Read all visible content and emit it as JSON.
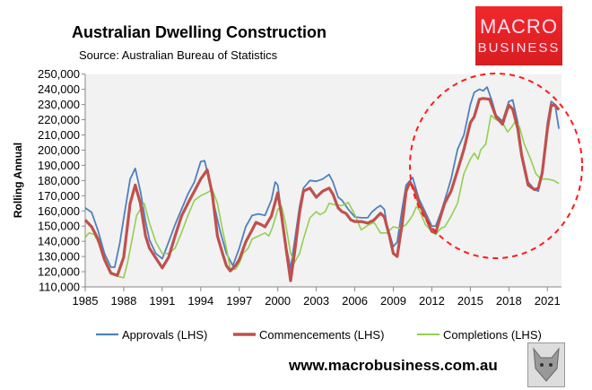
{
  "header": {
    "title": "Australian Dwelling Construction",
    "source": "Source: Australian Bureau of Statistics"
  },
  "logo": {
    "line1": "MACRO",
    "line2": "BUSINESS"
  },
  "footer": {
    "website": "www.macrobusiness.com.au",
    "fox_icon": "fox-head-icon"
  },
  "chart_data": {
    "type": "line",
    "title": "Australian Dwelling Construction",
    "ylabel": "Rolling Annual",
    "xlabel": "",
    "ylim": [
      110000,
      250000
    ],
    "xlim": [
      1985,
      2022.1
    ],
    "yticks": [
      110000,
      120000,
      130000,
      140000,
      150000,
      160000,
      170000,
      180000,
      190000,
      200000,
      210000,
      220000,
      230000,
      240000,
      250000
    ],
    "ytick_labels": [
      "110,000",
      "120,000",
      "130,000",
      "140,000",
      "150,000",
      "160,000",
      "170,000",
      "180,000",
      "190,000",
      "200,000",
      "210,000",
      "220,000",
      "230,000",
      "240,000",
      "250,000"
    ],
    "xtick_labels": [
      "1985",
      "1988",
      "1991",
      "1994",
      "1997",
      "2000",
      "2003",
      "2006",
      "2009",
      "2012",
      "2015",
      "2018",
      "2021"
    ],
    "grid": false,
    "legend": "bottom",
    "annotation": "red dashed circle highlighting 2012-2021",
    "series": [
      {
        "name": "Approvals (LHS)",
        "color": "#4f81bd",
        "points": [
          [
            1985,
            162000
          ],
          [
            1985.5,
            159000
          ],
          [
            1986,
            147000
          ],
          [
            1986.5,
            132000
          ],
          [
            1987,
            123000
          ],
          [
            1987.3,
            123000
          ],
          [
            1987.7,
            139000
          ],
          [
            1988,
            155000
          ],
          [
            1988.5,
            181000
          ],
          [
            1988.9,
            188000
          ],
          [
            1989.3,
            173000
          ],
          [
            1989.7,
            153000
          ],
          [
            1990,
            141000
          ],
          [
            1990.5,
            132000
          ],
          [
            1991,
            128500
          ],
          [
            1991.5,
            139500
          ],
          [
            1992,
            151000
          ],
          [
            1992.5,
            161000
          ],
          [
            1993,
            171000
          ],
          [
            1993.5,
            179000
          ],
          [
            1994,
            192500
          ],
          [
            1994.3,
            193000
          ],
          [
            1994.7,
            179000
          ],
          [
            1995,
            165500
          ],
          [
            1995.5,
            147000
          ],
          [
            1996,
            132000
          ],
          [
            1996.5,
            124000
          ],
          [
            1997,
            135500
          ],
          [
            1997.5,
            149500
          ],
          [
            1998,
            157000
          ],
          [
            1998.5,
            158000
          ],
          [
            1999,
            157000
          ],
          [
            1999.5,
            167000
          ],
          [
            1999.8,
            179000
          ],
          [
            2000,
            177000
          ],
          [
            2000.5,
            143500
          ],
          [
            2001,
            122000
          ],
          [
            2001.3,
            139500
          ],
          [
            2001.7,
            163000
          ],
          [
            2002,
            175000
          ],
          [
            2002.5,
            180000
          ],
          [
            2003,
            179500
          ],
          [
            2003.5,
            181000
          ],
          [
            2004,
            184000
          ],
          [
            2004.3,
            179000
          ],
          [
            2004.7,
            169000
          ],
          [
            2005,
            167000
          ],
          [
            2005.5,
            161000
          ],
          [
            2006,
            156000
          ],
          [
            2006.5,
            155500
          ],
          [
            2007,
            155500
          ],
          [
            2007.3,
            159000
          ],
          [
            2007.7,
            162000
          ],
          [
            2008,
            163500
          ],
          [
            2008.3,
            161000
          ],
          [
            2008.5,
            151000
          ],
          [
            2009,
            136500
          ],
          [
            2009.3,
            139500
          ],
          [
            2009.7,
            162000
          ],
          [
            2010,
            177000
          ],
          [
            2010.5,
            182000
          ],
          [
            2011,
            168000
          ],
          [
            2011.5,
            159000
          ],
          [
            2012,
            150000
          ],
          [
            2012.3,
            150000
          ],
          [
            2012.7,
            159000
          ],
          [
            2013,
            167000
          ],
          [
            2013.5,
            181000
          ],
          [
            2014,
            200500
          ],
          [
            2014.5,
            210000
          ],
          [
            2015,
            230000
          ],
          [
            2015.3,
            238000
          ],
          [
            2015.7,
            240000
          ],
          [
            2016,
            239000
          ],
          [
            2016.3,
            241500
          ],
          [
            2016.7,
            232000
          ],
          [
            2017,
            223000
          ],
          [
            2017.5,
            219000
          ],
          [
            2018,
            232000
          ],
          [
            2018.3,
            233000
          ],
          [
            2018.7,
            218000
          ],
          [
            2019,
            198500
          ],
          [
            2019.5,
            179000
          ],
          [
            2020,
            174000
          ],
          [
            2020.3,
            173000
          ],
          [
            2020.6,
            186500
          ],
          [
            2021,
            218000
          ],
          [
            2021.3,
            232000
          ],
          [
            2021.6,
            230000
          ],
          [
            2021.9,
            214000
          ]
        ]
      },
      {
        "name": "Commencements (LHS)",
        "color": "#c0504d",
        "points": [
          [
            1985,
            154000
          ],
          [
            1985.5,
            149500
          ],
          [
            1986,
            141500
          ],
          [
            1986.5,
            128000
          ],
          [
            1987,
            119000
          ],
          [
            1987.5,
            117500
          ],
          [
            1988,
            129500
          ],
          [
            1988.5,
            165000
          ],
          [
            1988.9,
            177000
          ],
          [
            1989.3,
            165000
          ],
          [
            1989.7,
            143500
          ],
          [
            1990,
            135500
          ],
          [
            1990.5,
            129000
          ],
          [
            1991,
            122500
          ],
          [
            1991.5,
            129500
          ],
          [
            1992,
            143500
          ],
          [
            1992.5,
            156500
          ],
          [
            1993,
            165000
          ],
          [
            1993.5,
            173000
          ],
          [
            1994,
            181000
          ],
          [
            1994.5,
            187000
          ],
          [
            1994.9,
            171000
          ],
          [
            1995.3,
            143500
          ],
          [
            1995.7,
            132000
          ],
          [
            1996,
            124000
          ],
          [
            1996.3,
            120500
          ],
          [
            1996.7,
            124000
          ],
          [
            1997,
            128000
          ],
          [
            1997.5,
            139500
          ],
          [
            1998,
            147500
          ],
          [
            1998.3,
            152500
          ],
          [
            1998.7,
            151000
          ],
          [
            1999,
            149500
          ],
          [
            1999.5,
            156500
          ],
          [
            2000,
            172000
          ],
          [
            2000.3,
            156500
          ],
          [
            2000.7,
            132000
          ],
          [
            2001,
            114000
          ],
          [
            2001.3,
            132000
          ],
          [
            2001.7,
            159000
          ],
          [
            2002,
            173000
          ],
          [
            2002.5,
            175000
          ],
          [
            2003,
            169000
          ],
          [
            2003.5,
            173000
          ],
          [
            2004,
            175000
          ],
          [
            2004.3,
            171000
          ],
          [
            2004.7,
            162000
          ],
          [
            2005,
            159500
          ],
          [
            2005.3,
            158500
          ],
          [
            2005.7,
            154000
          ],
          [
            2006,
            153000
          ],
          [
            2006.5,
            153000
          ],
          [
            2007,
            152000
          ],
          [
            2007.5,
            154000
          ],
          [
            2008,
            158500
          ],
          [
            2008.3,
            156000
          ],
          [
            2008.7,
            143500
          ],
          [
            2009,
            132000
          ],
          [
            2009.3,
            130000
          ],
          [
            2009.7,
            152000
          ],
          [
            2010,
            173000
          ],
          [
            2010.3,
            179000
          ],
          [
            2010.7,
            173000
          ],
          [
            2011,
            165000
          ],
          [
            2011.5,
            156500
          ],
          [
            2012,
            146500
          ],
          [
            2012.3,
            145500
          ],
          [
            2012.7,
            157000
          ],
          [
            2013,
            165000
          ],
          [
            2013.5,
            173000
          ],
          [
            2014,
            186500
          ],
          [
            2014.5,
            200500
          ],
          [
            2015,
            218000
          ],
          [
            2015.3,
            222000
          ],
          [
            2015.7,
            233500
          ],
          [
            2016,
            234000
          ],
          [
            2016.5,
            233500
          ],
          [
            2017,
            222000
          ],
          [
            2017.5,
            217000
          ],
          [
            2017.8,
            225000
          ],
          [
            2018,
            229500
          ],
          [
            2018.3,
            227000
          ],
          [
            2018.7,
            214000
          ],
          [
            2019,
            196500
          ],
          [
            2019.5,
            177000
          ],
          [
            2020,
            174000
          ],
          [
            2020.3,
            175000
          ],
          [
            2020.6,
            185000
          ],
          [
            2021,
            214000
          ],
          [
            2021.3,
            229500
          ],
          [
            2021.6,
            229500
          ],
          [
            2021.9,
            226500
          ]
        ]
      },
      {
        "name": "Completions (LHS)",
        "color": "#92d050",
        "points": [
          [
            1985,
            142500
          ],
          [
            1985.3,
            145500
          ],
          [
            1985.7,
            144500
          ],
          [
            1986,
            139500
          ],
          [
            1986.5,
            129500
          ],
          [
            1987,
            120000
          ],
          [
            1987.5,
            117000
          ],
          [
            1988,
            116000
          ],
          [
            1988.3,
            126000
          ],
          [
            1988.7,
            143500
          ],
          [
            1989,
            157000
          ],
          [
            1989.3,
            161000
          ],
          [
            1989.6,
            165000
          ],
          [
            1990,
            152000
          ],
          [
            1990.5,
            139500
          ],
          [
            1991,
            132000
          ],
          [
            1991.5,
            132000
          ],
          [
            1992,
            135500
          ],
          [
            1992.5,
            145500
          ],
          [
            1993,
            157000
          ],
          [
            1993.5,
            167000
          ],
          [
            1994,
            170000
          ],
          [
            1994.5,
            172000
          ],
          [
            1994.9,
            174000
          ],
          [
            1995.3,
            165000
          ],
          [
            1995.7,
            147500
          ],
          [
            1996,
            135500
          ],
          [
            1996.3,
            122000
          ],
          [
            1996.7,
            121500
          ],
          [
            1997,
            125500
          ],
          [
            1997.3,
            132000
          ],
          [
            1997.7,
            135500
          ],
          [
            1998,
            141500
          ],
          [
            1998.5,
            143500
          ],
          [
            1999,
            145500
          ],
          [
            1999.3,
            143500
          ],
          [
            1999.6,
            149500
          ],
          [
            2000,
            161000
          ],
          [
            2000.3,
            163000
          ],
          [
            2000.6,
            152000
          ],
          [
            2001,
            132000
          ],
          [
            2001.3,
            126000
          ],
          [
            2001.7,
            132000
          ],
          [
            2002,
            141500
          ],
          [
            2002.5,
            155500
          ],
          [
            2003,
            159500
          ],
          [
            2003.3,
            157500
          ],
          [
            2003.7,
            159500
          ],
          [
            2004,
            165000
          ],
          [
            2004.5,
            164000
          ],
          [
            2005,
            163500
          ],
          [
            2005.5,
            165500
          ],
          [
            2006,
            157500
          ],
          [
            2006.5,
            147500
          ],
          [
            2007,
            150500
          ],
          [
            2007.5,
            152500
          ],
          [
            2008,
            145500
          ],
          [
            2008.5,
            145500
          ],
          [
            2009,
            149500
          ],
          [
            2009.5,
            148500
          ],
          [
            2010,
            151000
          ],
          [
            2010.5,
            157000
          ],
          [
            2010.8,
            163000
          ],
          [
            2011,
            161000
          ],
          [
            2011.5,
            151000
          ],
          [
            2012,
            146500
          ],
          [
            2012.3,
            144500
          ],
          [
            2012.7,
            148500
          ],
          [
            2013,
            149500
          ],
          [
            2013.5,
            156500
          ],
          [
            2014,
            165000
          ],
          [
            2014.5,
            184500
          ],
          [
            2015,
            194000
          ],
          [
            2015.3,
            198000
          ],
          [
            2015.6,
            194000
          ],
          [
            2015.8,
            200000
          ],
          [
            2016.2,
            204000
          ],
          [
            2016.6,
            223000
          ],
          [
            2017,
            220000
          ],
          [
            2017.5,
            218000
          ],
          [
            2017.9,
            212000
          ],
          [
            2018.2,
            215000
          ],
          [
            2018.5,
            219000
          ],
          [
            2018.8,
            216000
          ],
          [
            2019.2,
            204000
          ],
          [
            2019.7,
            194000
          ],
          [
            2020.1,
            184500
          ],
          [
            2020.5,
            181000
          ],
          [
            2021,
            181000
          ],
          [
            2021.5,
            180000
          ],
          [
            2021.9,
            178000
          ]
        ]
      }
    ]
  }
}
